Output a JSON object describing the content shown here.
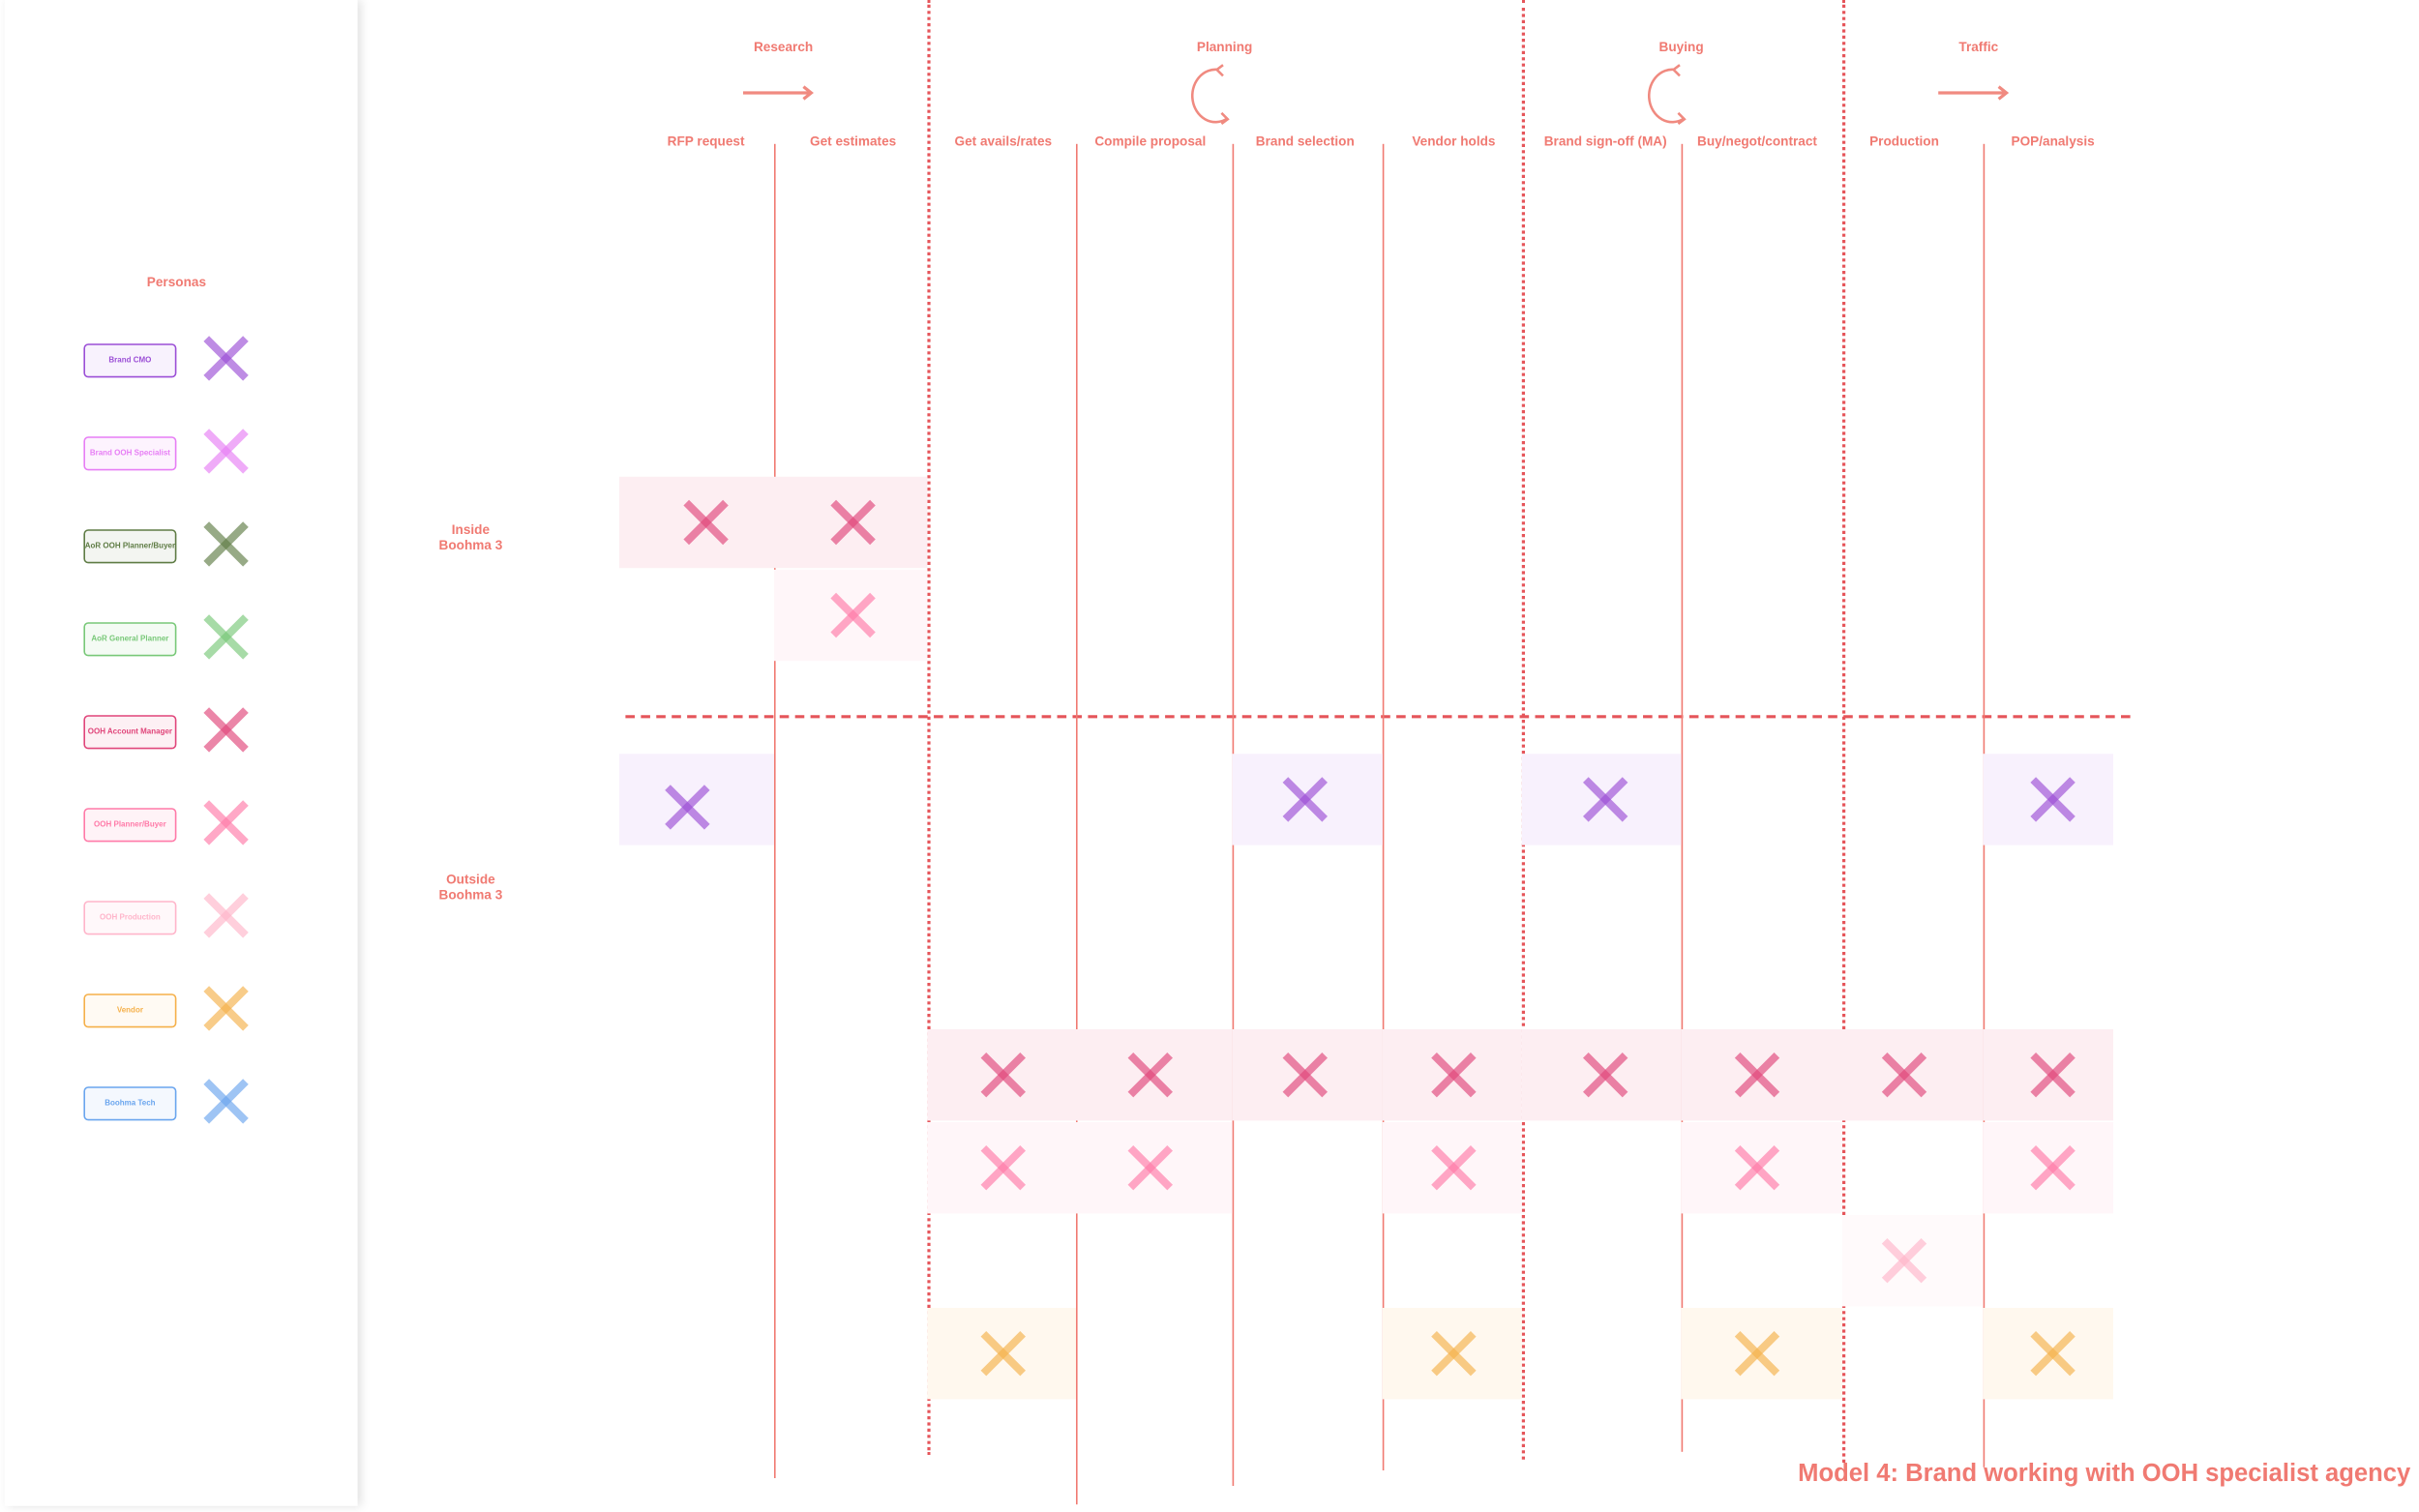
{
  "personas_title": "Personas",
  "personas": [
    {
      "label": "Brand CMO",
      "color": "#9b4fd6",
      "bg": "#f8f2fd"
    },
    {
      "label": "Brand OOH Specialist",
      "color": "#e77ef5",
      "bg": "#fdf3fe"
    },
    {
      "label": "AoR OOH Planner/Buyer",
      "color": "#5f7c45",
      "bg": "#f3f5f1"
    },
    {
      "label": "AoR General Planner",
      "color": "#78c878",
      "bg": "#f4fbf4"
    },
    {
      "label": "OOH Account Manager",
      "color": "#e0457a",
      "bg": "#fdf0f4"
    },
    {
      "label": "OOH Planner/Buyer",
      "color": "#ff7aa8",
      "bg": "#fff3f7"
    },
    {
      "label": "OOH Production",
      "color": "#ffb5ca",
      "bg": "#fff8fa"
    },
    {
      "label": "Vendor",
      "color": "#f5b04a",
      "bg": "#fffaf3"
    },
    {
      "label": "Boohma Tech",
      "color": "#6aa5ee",
      "bg": "#f4f8fe"
    }
  ],
  "phases": [
    {
      "label": "Research",
      "icon": "arrow-right-icon"
    },
    {
      "label": "Planning",
      "icon": "cycle-icon"
    },
    {
      "label": "Buying",
      "icon": "cycle-icon"
    },
    {
      "label": "Traffic",
      "icon": "arrow-right-icon"
    }
  ],
  "steps": [
    "RFP request",
    "Get estimates",
    "Get avails/rates",
    "Compile proposal",
    "Brand selection",
    "Vendor holds",
    "Brand sign-off (MA)",
    "Buy/negot/contract",
    "Production",
    "POP/analysis"
  ],
  "zones": {
    "inside": "Inside\nBoohma 3",
    "outside": "Outside\nBoohma 3"
  },
  "rows": [
    {
      "persona": 4,
      "bg": "#fdeef2",
      "steps": [
        0,
        1
      ]
    },
    {
      "persona": 5,
      "bg": "#fff6f9",
      "steps": [
        1
      ]
    },
    {
      "persona": 0,
      "bg": "#f8f1fd",
      "steps": [
        0,
        4,
        6,
        9
      ]
    },
    {
      "persona": 4,
      "bg": "#fdeef2",
      "steps": [
        2,
        3,
        4,
        5,
        6,
        7,
        8,
        9
      ]
    },
    {
      "persona": 5,
      "bg": "#fff6f9",
      "steps": [
        2,
        3,
        5,
        7,
        9
      ]
    },
    {
      "persona": 6,
      "bg": "#fffafb",
      "steps": [
        8
      ]
    },
    {
      "persona": 7,
      "bg": "#fff8ee",
      "steps": [
        2,
        5,
        7,
        9
      ]
    }
  ],
  "title": "Model 4:  Brand working with OOH specialist agency"
}
